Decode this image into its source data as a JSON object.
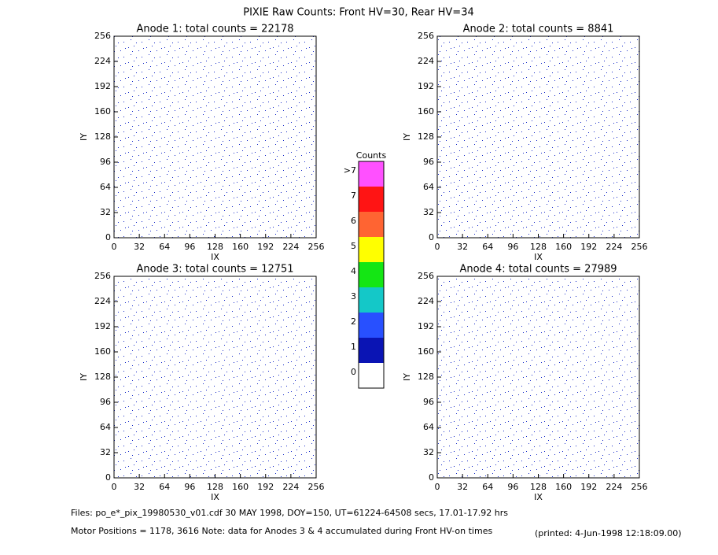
{
  "title": "PIXIE Raw Counts:  Front HV=30, Rear HV=34",
  "chart_data": [
    {
      "type": "heatmap",
      "title": "Anode 1: total counts = 22178",
      "xlabel": "IX",
      "ylabel": "IY",
      "xlim": [
        0,
        256
      ],
      "ylim": [
        0,
        256
      ],
      "xticks": [
        0,
        32,
        64,
        96,
        128,
        160,
        192,
        224,
        256
      ],
      "yticks": [
        0,
        32,
        64,
        96,
        128,
        160,
        192,
        224,
        256
      ]
    },
    {
      "type": "heatmap",
      "title": "Anode 2: total counts = 8841",
      "xlabel": "IX",
      "ylabel": "IY",
      "xlim": [
        0,
        256
      ],
      "ylim": [
        0,
        256
      ],
      "xticks": [
        0,
        32,
        64,
        96,
        128,
        160,
        192,
        224,
        256
      ],
      "yticks": [
        0,
        32,
        64,
        96,
        128,
        160,
        192,
        224,
        256
      ]
    },
    {
      "type": "heatmap",
      "title": "Anode 3: total counts = 12751",
      "xlabel": "IX",
      "ylabel": "IY",
      "xlim": [
        0,
        256
      ],
      "ylim": [
        0,
        256
      ],
      "xticks": [
        0,
        32,
        64,
        96,
        128,
        160,
        192,
        224,
        256
      ],
      "yticks": [
        0,
        32,
        64,
        96,
        128,
        160,
        192,
        224,
        256
      ]
    },
    {
      "type": "heatmap",
      "title": "Anode 4: total counts = 27989",
      "xlabel": "IX",
      "ylabel": "IY",
      "xlim": [
        0,
        256
      ],
      "ylim": [
        0,
        256
      ],
      "xticks": [
        0,
        32,
        64,
        96,
        128,
        160,
        192,
        224,
        256
      ],
      "yticks": [
        0,
        32,
        64,
        96,
        128,
        160,
        192,
        224,
        256
      ]
    }
  ],
  "colorbar": {
    "title": "Counts",
    "levels": [
      {
        "label": "0",
        "color": "#ffffff"
      },
      {
        "label": "1",
        "color": "#0a14b4"
      },
      {
        "label": "2",
        "color": "#2850ff"
      },
      {
        "label": "3",
        "color": "#14c8c8"
      },
      {
        "label": "4",
        "color": "#14e614"
      },
      {
        "label": "5",
        "color": "#ffff00"
      },
      {
        "label": "6",
        "color": "#ff6432"
      },
      {
        "label": "7",
        "color": "#ff1414"
      },
      {
        "label": ">7",
        "color": "#ff50ff"
      }
    ]
  },
  "footer": {
    "files": "Files: po_e*_pix_19980530_v01.cdf    30 MAY 1998, DOY=150, UT=61224-64508 secs, 17.01-17.92 hrs",
    "motor": "Motor Positions = 1178, 3616    Note: data for Anodes 3 & 4 accumulated during Front HV-on times",
    "printed": "(printed:  4-Jun-1998 12:18:09.00)"
  }
}
